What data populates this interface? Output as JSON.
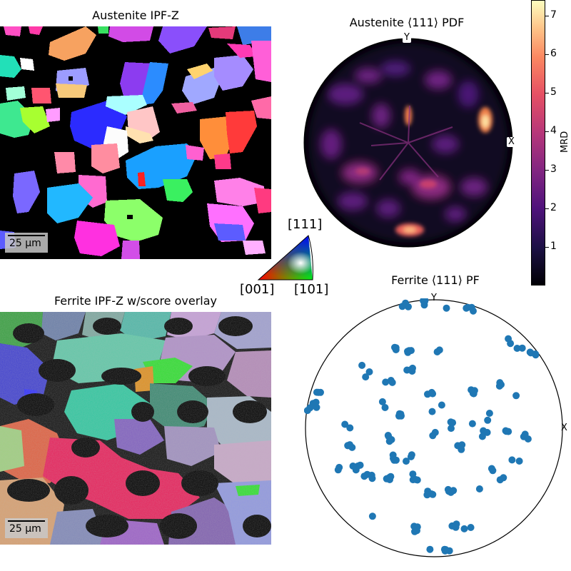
{
  "panels": {
    "austenite_ipf": {
      "title": "Austenite IPF-Z",
      "scalebar": "25 µm"
    },
    "austenite_pdf": {
      "title": "Austenite ⟨111⟩ PDF",
      "y_label": "Y",
      "x_label": "X"
    },
    "ferrite_ipf": {
      "title": "Ferrite IPF-Z w/score overlay",
      "scalebar": "25 µm"
    },
    "ferrite_pf": {
      "title": "Ferrite ⟨111⟩ PF",
      "y_label": "Y",
      "x_label": "X"
    }
  },
  "ipf_key": {
    "top": "[111]",
    "left": "[001]",
    "right": "[101]"
  },
  "colorbar": {
    "label": "MRD",
    "ticks": [
      "1",
      "2",
      "3",
      "4",
      "5",
      "6",
      "7"
    ],
    "tick_values": [
      1,
      2,
      3,
      4,
      5,
      6,
      7
    ],
    "range": [
      0,
      7.4
    ],
    "colormap": "magma"
  },
  "colors": {
    "pole_points": "#1f77b4",
    "background": "#000000"
  }
}
